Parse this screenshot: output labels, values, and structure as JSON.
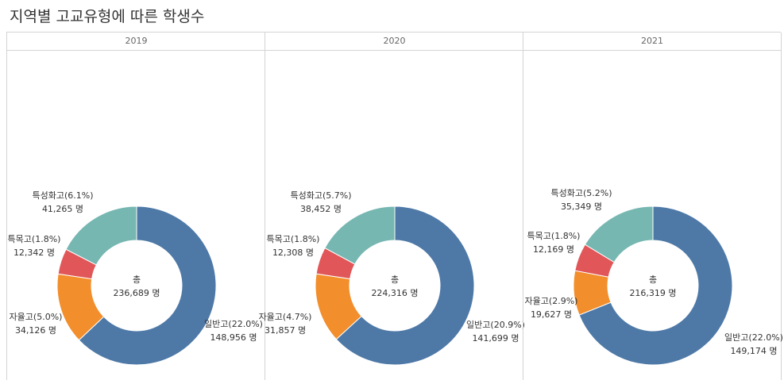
{
  "title": "지역별 고교유형에 따른 학생수",
  "colors": {
    "일반고": "#4e79a7",
    "자율고": "#f28e2b",
    "특목고": "#e15759",
    "특성화고": "#76b7b2"
  },
  "chart_data": {
    "type": "pie",
    "title": "지역별 고교유형에 따른 학생수",
    "total_label": "총",
    "unit": "명",
    "panels": [
      {
        "year": "2019",
        "total": "236,689 명",
        "slices": [
          {
            "name": "일반고",
            "value": 148956,
            "pct_label": "일반고(22.0%)",
            "value_label": "148,956 명"
          },
          {
            "name": "자율고",
            "value": 34126,
            "pct_label": "자율고(5.0%)",
            "value_label": "34,126 명"
          },
          {
            "name": "특목고",
            "value": 12342,
            "pct_label": "특목고(1.8%)",
            "value_label": "12,342 명"
          },
          {
            "name": "특성화고",
            "value": 41265,
            "pct_label": "특성화고(6.1%)",
            "value_label": "41,265 명"
          }
        ]
      },
      {
        "year": "2020",
        "total": "224,316 명",
        "slices": [
          {
            "name": "일반고",
            "value": 141699,
            "pct_label": "일반고(20.9%)",
            "value_label": "141,699 명"
          },
          {
            "name": "자율고",
            "value": 31857,
            "pct_label": "자율고(4.7%)",
            "value_label": "31,857 명"
          },
          {
            "name": "특목고",
            "value": 12308,
            "pct_label": "특목고(1.8%)",
            "value_label": "12,308 명"
          },
          {
            "name": "특성화고",
            "value": 38452,
            "pct_label": "특성화고(5.7%)",
            "value_label": "38,452 명"
          }
        ]
      },
      {
        "year": "2021",
        "total": "216,319 명",
        "slices": [
          {
            "name": "일반고",
            "value": 149174,
            "pct_label": "일반고(22.0%)",
            "value_label": "149,174 명"
          },
          {
            "name": "자율고",
            "value": 19627,
            "pct_label": "자율고(2.9%)",
            "value_label": "19,627 명"
          },
          {
            "name": "특목고",
            "value": 12169,
            "pct_label": "특목고(1.8%)",
            "value_label": "12,169 명"
          },
          {
            "name": "특성화고",
            "value": 35349,
            "pct_label": "특성화고(5.2%)",
            "value_label": "35,349 명"
          }
        ]
      }
    ]
  }
}
